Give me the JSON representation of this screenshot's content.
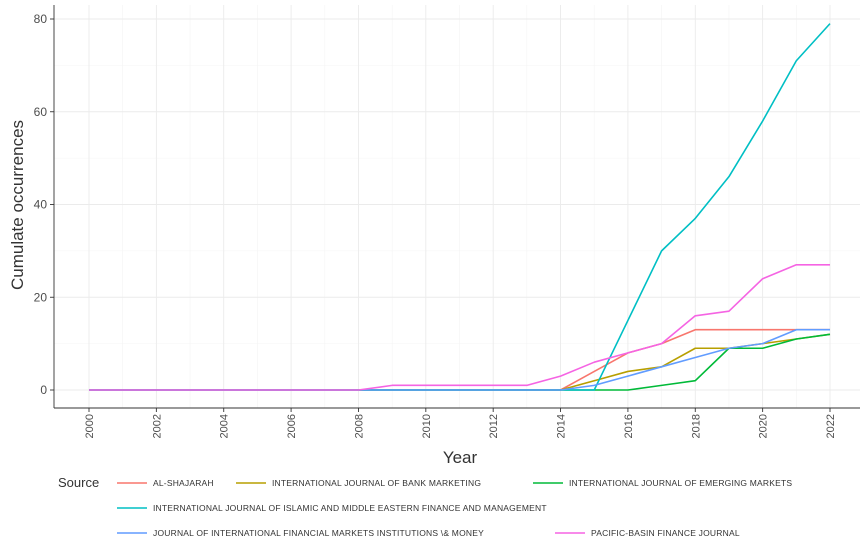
{
  "chart_data": {
    "type": "line",
    "title": "",
    "xlabel": "Year",
    "ylabel": "Cumulate occurrences",
    "xlim": [
      2000,
      2022
    ],
    "ylim": [
      0,
      80
    ],
    "x_ticks": [
      "2000",
      "2002",
      "2004",
      "2006",
      "2008",
      "2010",
      "2012",
      "2014",
      "2016",
      "2018",
      "2020",
      "2022"
    ],
    "y_ticks": [
      "0",
      "20",
      "40",
      "60",
      "80"
    ],
    "grid": true,
    "legend_placement": "bottom",
    "legend_title": "Source",
    "x": [
      2000,
      2001,
      2002,
      2003,
      2004,
      2005,
      2006,
      2007,
      2008,
      2009,
      2010,
      2011,
      2012,
      2013,
      2014,
      2015,
      2016,
      2017,
      2018,
      2019,
      2020,
      2021,
      2022
    ],
    "series": [
      {
        "name": "AL-SHAJARAH",
        "color": "#f8766d",
        "values": [
          0,
          0,
          0,
          0,
          0,
          0,
          0,
          0,
          0,
          0,
          0,
          0,
          0,
          0,
          0,
          4,
          8,
          10,
          13,
          13,
          13,
          13,
          13
        ]
      },
      {
        "name": "INTERNATIONAL JOURNAL OF BANK MARKETING",
        "color": "#b79f00",
        "values": [
          0,
          0,
          0,
          0,
          0,
          0,
          0,
          0,
          0,
          0,
          0,
          0,
          0,
          0,
          0,
          2,
          4,
          5,
          9,
          9,
          10,
          11,
          12
        ]
      },
      {
        "name": "INTERNATIONAL JOURNAL OF EMERGING MARKETS",
        "color": "#00ba38",
        "values": [
          0,
          0,
          0,
          0,
          0,
          0,
          0,
          0,
          0,
          0,
          0,
          0,
          0,
          0,
          0,
          0,
          0,
          1,
          2,
          9,
          9,
          11,
          12
        ]
      },
      {
        "name": "INTERNATIONAL JOURNAL OF ISLAMIC AND MIDDLE EASTERN FINANCE AND MANAGEMENT",
        "color": "#00bfc4",
        "values": [
          0,
          0,
          0,
          0,
          0,
          0,
          0,
          0,
          0,
          0,
          0,
          0,
          0,
          0,
          0,
          0,
          15,
          30,
          37,
          46,
          58,
          71,
          79
        ]
      },
      {
        "name": "JOURNAL OF INTERNATIONAL FINANCIAL MARKETS INSTITUTIONS \\& MONEY",
        "color": "#619cff",
        "values": [
          0,
          0,
          0,
          0,
          0,
          0,
          0,
          0,
          0,
          0,
          0,
          0,
          0,
          0,
          0,
          1,
          3,
          5,
          7,
          9,
          10,
          13,
          13
        ]
      },
      {
        "name": "PACIFIC-BASIN FINANCE JOURNAL",
        "color": "#f564e3",
        "values": [
          0,
          0,
          0,
          0,
          0,
          0,
          0,
          0,
          0,
          1,
          1,
          1,
          1,
          1,
          3,
          6,
          8,
          10,
          16,
          17,
          24,
          27,
          27
        ]
      }
    ]
  }
}
